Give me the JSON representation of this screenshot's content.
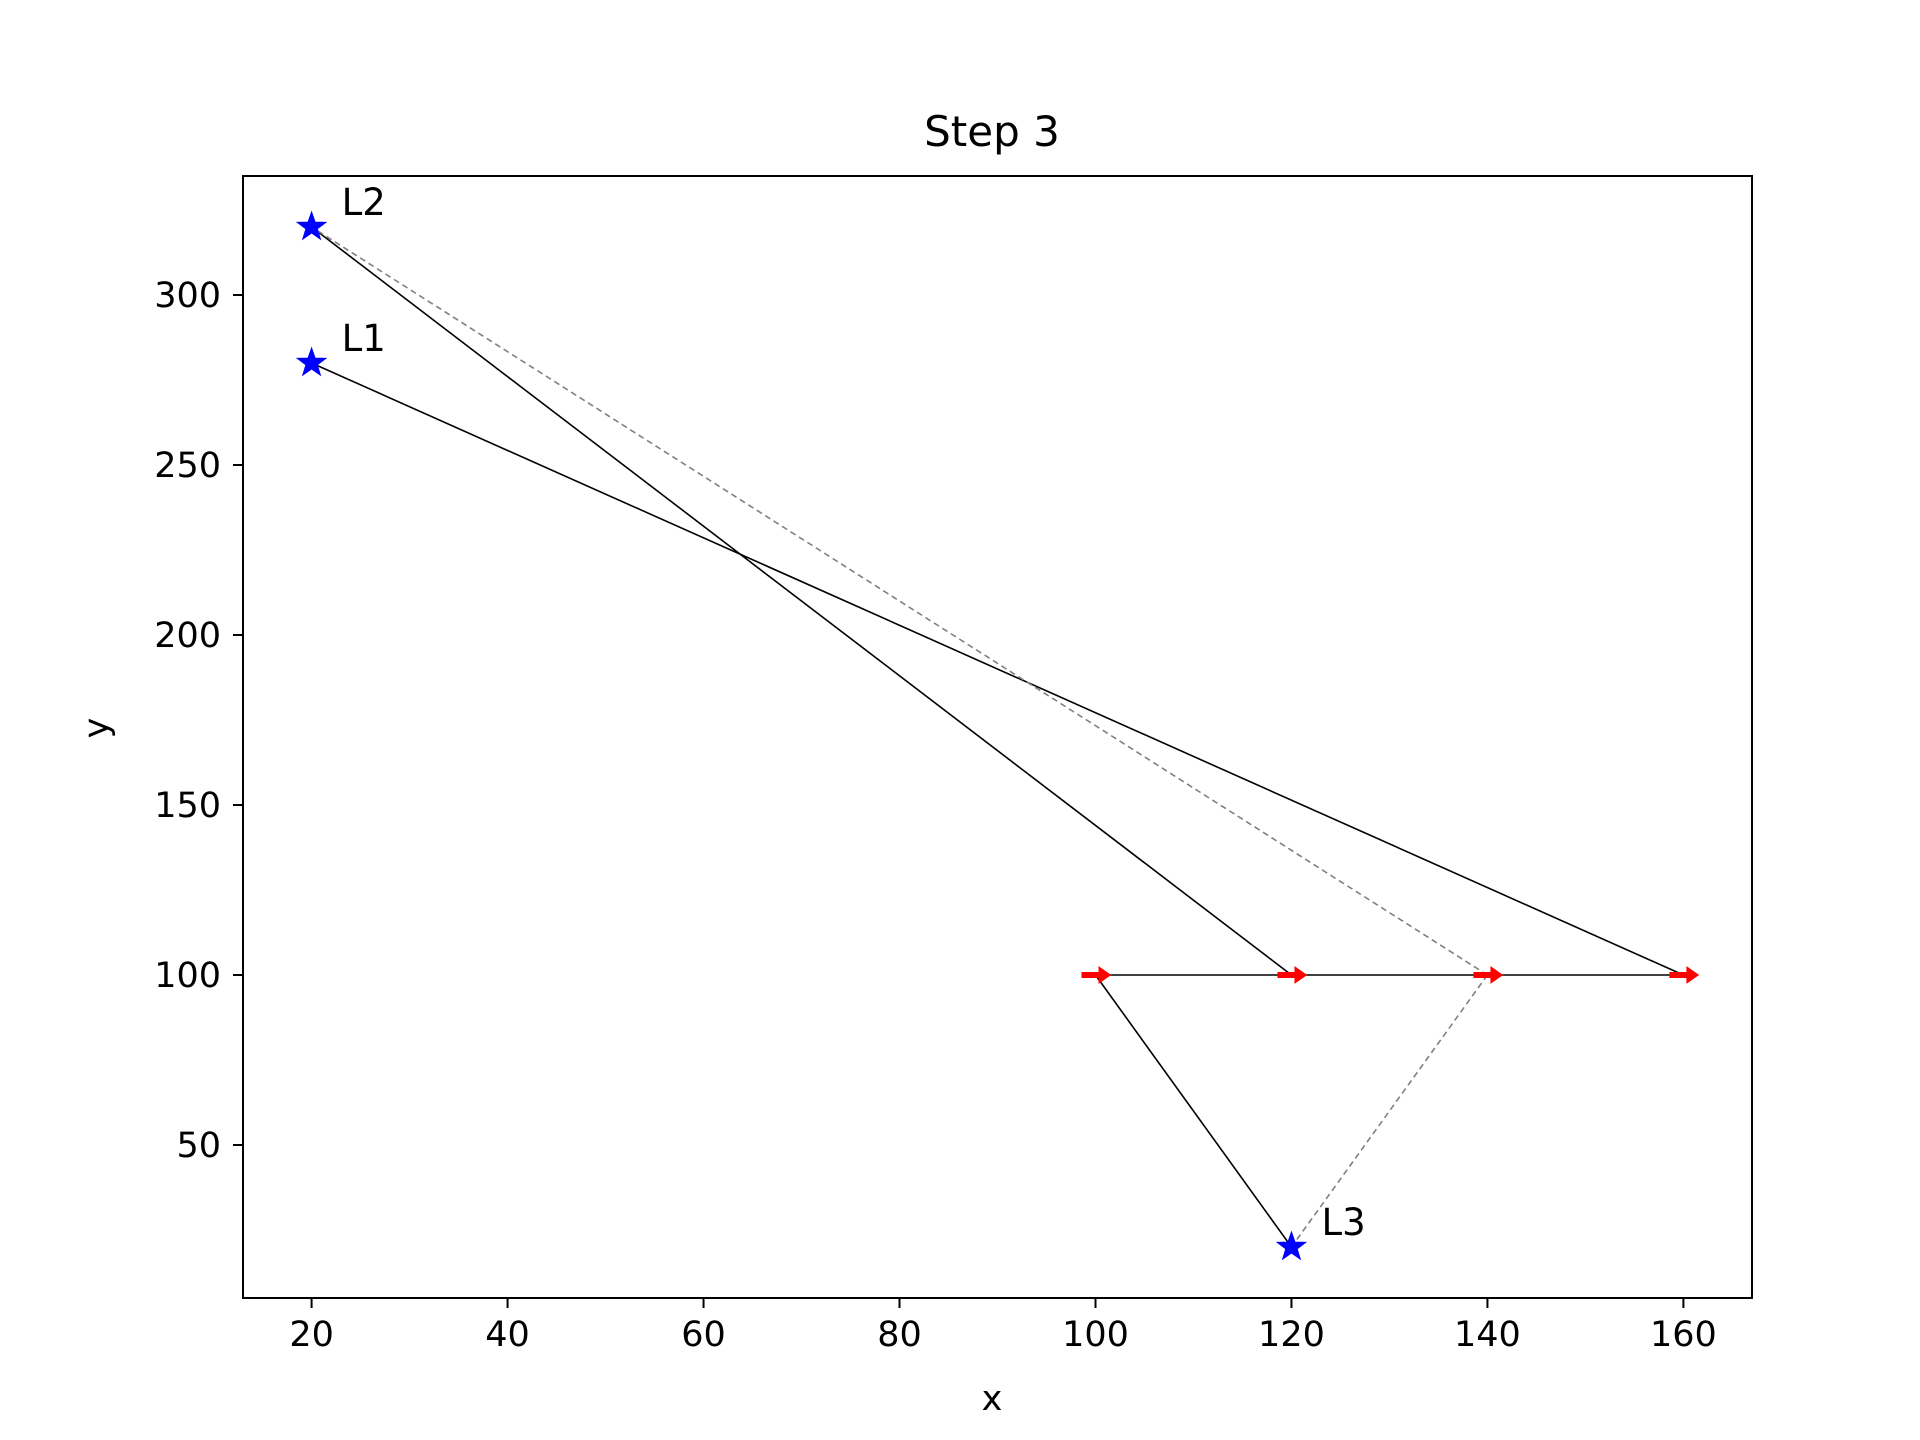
{
  "chart_data": {
    "type": "scatter",
    "title": "Step 3",
    "xlabel": "x",
    "ylabel": "y",
    "xlim": [
      13,
      167
    ],
    "ylim": [
      5,
      335
    ],
    "xticks": [
      20,
      40,
      60,
      80,
      100,
      120,
      140,
      160
    ],
    "yticks": [
      50,
      100,
      150,
      200,
      250,
      300
    ],
    "grid": false,
    "landmarks": [
      {
        "name": "L1",
        "x": 20,
        "y": 280
      },
      {
        "name": "L2",
        "x": 20,
        "y": 320
      },
      {
        "name": "L3",
        "x": 120,
        "y": 20
      }
    ],
    "path": {
      "x": [
        100,
        120,
        140,
        160
      ],
      "y": [
        100,
        100,
        100,
        100
      ]
    },
    "robot_poses": [
      {
        "x": 100,
        "y": 100,
        "heading_deg": 0
      },
      {
        "x": 120,
        "y": 100,
        "heading_deg": 0
      },
      {
        "x": 140,
        "y": 100,
        "heading_deg": 0
      },
      {
        "x": 160,
        "y": 100,
        "heading_deg": 0
      }
    ],
    "observations_solid": [
      {
        "from": [
          100,
          100
        ],
        "to": [
          120,
          20
        ]
      },
      {
        "from": [
          120,
          100
        ],
        "to": [
          20,
          320
        ]
      },
      {
        "from": [
          160,
          100
        ],
        "to": [
          20,
          280
        ]
      }
    ],
    "observations_dashed": [
      {
        "from": [
          140,
          100
        ],
        "to": [
          20,
          320
        ]
      },
      {
        "from": [
          140,
          100
        ],
        "to": [
          120,
          20
        ]
      }
    ],
    "colors": {
      "landmark": "#0000ff",
      "robot": "#ff0000",
      "solid_line": "#000000",
      "dashed_line": "#808080"
    }
  }
}
